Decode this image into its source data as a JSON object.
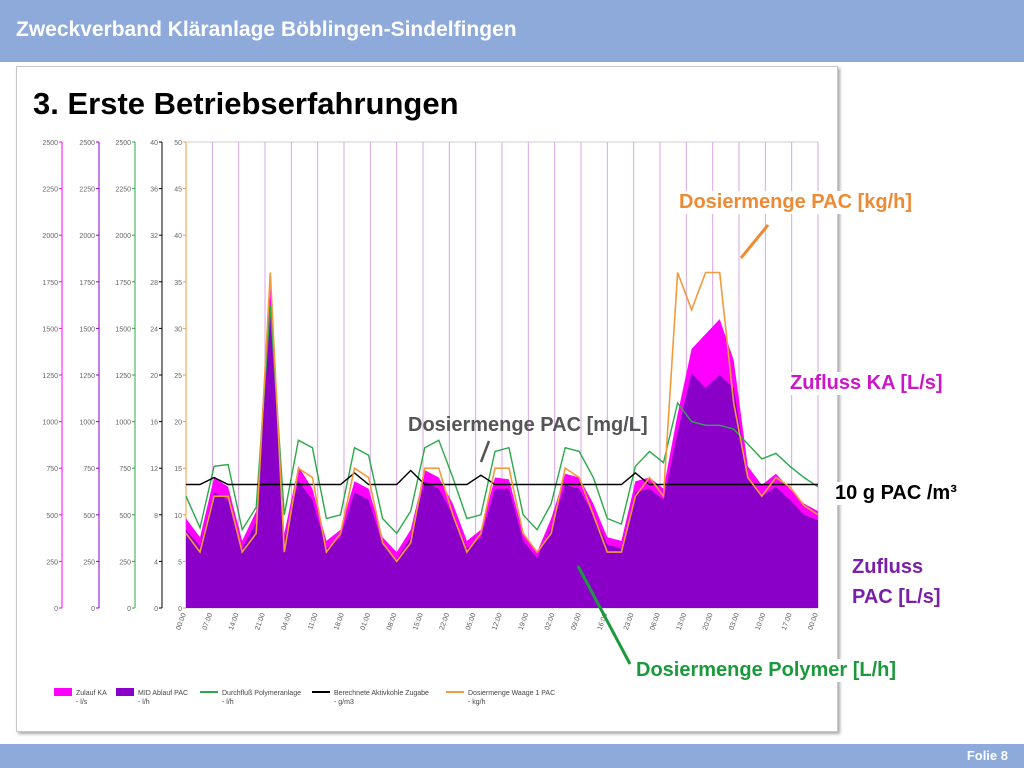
{
  "header": {
    "title": "Zweckverband Kläranlage Böblingen-Sindelfingen"
  },
  "slide": {
    "title": "3. Erste Betriebserfahrungen",
    "footer": "Folie 8"
  },
  "annotations": {
    "dosier_kgh": "Dosiermenge PAC [kg/h]",
    "zufluss_ka": "Zufluss KA [L/s]",
    "dosier_mgl": "Dosiermenge PAC [mg/L]",
    "pac_m3": "10 g PAC /m³",
    "zufluss_pac_1": "Zufluss",
    "zufluss_pac_2": "PAC [L/s]",
    "dosier_polymer": "Dosiermenge Polymer [L/h]"
  },
  "colors": {
    "magenta": "#ff00ff",
    "purple": "#8a00c8",
    "green": "#2ca84a",
    "black": "#000000",
    "orange": "#f29a3c",
    "vline": "#d9a6e6"
  },
  "chart_data": {
    "type": "line",
    "x_tick_labels": [
      "00:00",
      "07:00",
      "14:00",
      "21:00",
      "04:00",
      "11:00",
      "18:00",
      "01:00",
      "08:00",
      "15:00",
      "22:00",
      "05:00",
      "12:00",
      "19:00",
      "02:00",
      "09:00",
      "16:00",
      "23:00",
      "06:00",
      "13:00",
      "20:00",
      "03:00",
      "10:00",
      "17:00",
      "00:00"
    ],
    "y_axes": [
      {
        "ticks": [
          "2500",
          "2250",
          "2000",
          "1750",
          "1500",
          "1250",
          "1000",
          "750",
          "500",
          "250",
          "0"
        ],
        "color": "#ff00ff",
        "range": [
          0,
          2500
        ]
      },
      {
        "ticks": [
          "2500",
          "2250",
          "2000",
          "1750",
          "1500",
          "1250",
          "1000",
          "750",
          "500",
          "250",
          "0"
        ],
        "color": "#8a00c8",
        "range": [
          0,
          2500
        ]
      },
      {
        "ticks": [
          "2500",
          "2250",
          "2000",
          "1750",
          "1500",
          "1250",
          "1000",
          "750",
          "500",
          "250",
          "0"
        ],
        "color": "#2ca84a",
        "range": [
          0,
          2500
        ]
      },
      {
        "ticks": [
          "40",
          "36",
          "32",
          "28",
          "24",
          "20",
          "16",
          "12",
          "8",
          "4",
          "0"
        ],
        "color": "#000000",
        "range": [
          0,
          40
        ]
      },
      {
        "ticks": [
          "50",
          "45",
          "40",
          "35",
          "30",
          "25",
          "20",
          "15",
          "10",
          "5",
          "0"
        ],
        "color": "#f29a3c",
        "range": [
          0,
          50
        ]
      }
    ],
    "series": [
      {
        "name": "Zulauf KA - l/s",
        "color": "#ff00ff",
        "axis": 0,
        "values": [
          480,
          380,
          700,
          650,
          360,
          520,
          1720,
          400,
          760,
          640,
          360,
          420,
          680,
          640,
          380,
          300,
          420,
          740,
          700,
          560,
          360,
          420,
          700,
          690,
          400,
          300,
          480,
          720,
          700,
          560,
          380,
          360,
          680,
          700,
          640,
          1040,
          1390,
          1470,
          1550,
          1330,
          760,
          660,
          720,
          640,
          560,
          520
        ]
      },
      {
        "name": "MID Ablauf PAC - l/h",
        "color": "#8a00c8",
        "axis": 1,
        "values": [
          420,
          330,
          620,
          580,
          320,
          460,
          1600,
          360,
          680,
          580,
          320,
          380,
          620,
          580,
          340,
          260,
          380,
          680,
          640,
          500,
          320,
          380,
          640,
          640,
          360,
          270,
          430,
          660,
          640,
          500,
          340,
          320,
          620,
          640,
          580,
          940,
          1260,
          1180,
          1250,
          1180,
          700,
          600,
          650,
          580,
          500,
          470
        ]
      },
      {
        "name": "Durchfluß Polymeranlage - l/h",
        "color": "#2ca84a",
        "axis": 2,
        "values": [
          600,
          430,
          760,
          770,
          420,
          540,
          1620,
          500,
          900,
          860,
          480,
          500,
          860,
          820,
          480,
          400,
          520,
          860,
          900,
          700,
          480,
          500,
          840,
          860,
          500,
          420,
          560,
          860,
          840,
          700,
          480,
          450,
          760,
          840,
          780,
          1100,
          1000,
          980,
          980,
          960,
          880,
          800,
          830,
          760,
          700,
          650
        ]
      },
      {
        "name": "Berechnete Aktivkohle Zugabe - g/m3",
        "color": "#000000",
        "axis": 3,
        "values": [
          10.6,
          10.6,
          11.2,
          10.6,
          10.6,
          10.6,
          10.6,
          10.6,
          10.6,
          10.6,
          10.6,
          10.6,
          11.6,
          10.6,
          10.6,
          10.6,
          11.8,
          10.6,
          10.6,
          10.6,
          10.6,
          11.4,
          10.6,
          10.6,
          10.6,
          10.6,
          10.6,
          10.6,
          10.6,
          10.6,
          10.6,
          10.6,
          11.6,
          10.6,
          10.6,
          10.6,
          10.6,
          10.6,
          10.6,
          10.6,
          10.6,
          10.6,
          10.6,
          10.6,
          10.6,
          10.6
        ]
      },
      {
        "name": "Dosiermenge Waage 1  PAC - kg/h",
        "color": "#f29a3c",
        "axis": 4,
        "values": [
          8,
          6,
          12,
          12,
          6,
          8,
          36,
          6,
          15,
          14,
          6,
          8,
          15,
          14,
          7,
          5,
          7,
          15,
          15,
          10,
          6,
          8,
          15,
          15,
          8,
          6,
          8,
          15,
          14,
          10,
          6,
          6,
          12,
          14,
          12,
          36,
          32,
          36,
          36,
          22,
          14,
          12,
          14,
          13,
          11,
          10
        ]
      }
    ],
    "markers": [
      {
        "name": "Dosiermenge PAC [kg/h]"
      },
      {
        "name": "Zufluss KA [L/s]"
      },
      {
        "name": "Dosiermenge PAC [mg/L]"
      },
      {
        "name": "10 g PAC /m³"
      },
      {
        "name": "Zufluss PAC [L/s]"
      },
      {
        "name": "Dosiermenge Polymer [L/h]"
      }
    ],
    "legend": [
      {
        "label_1": "Zulauf KA",
        "label_2": "- l/s",
        "color": "#ff00ff",
        "kind": "bar"
      },
      {
        "label_1": "MID Ablauf PAC",
        "label_2": "- l/h",
        "color": "#8a00c8",
        "kind": "bar"
      },
      {
        "label_1": "Durchfluß Polymeranlage",
        "label_2": "- l/h",
        "color": "#2ca84a",
        "kind": "line"
      },
      {
        "label_1": "Berechnete Aktivkohle Zugabe",
        "label_2": "- g/m3",
        "color": "#000000",
        "kind": "line"
      },
      {
        "label_1": "Dosiermenge Waage 1  PAC",
        "label_2": "- kg/h",
        "color": "#f29a3c",
        "kind": "line"
      }
    ]
  }
}
